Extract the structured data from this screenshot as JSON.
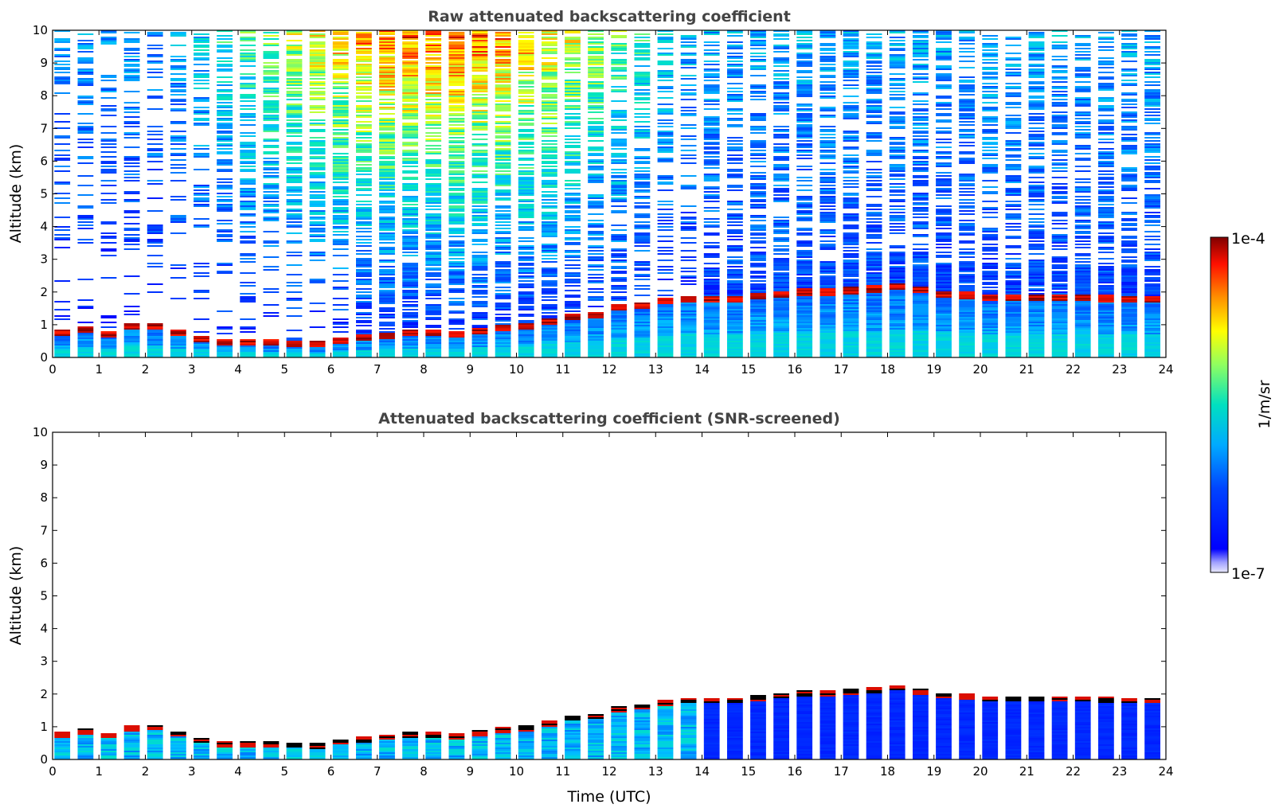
{
  "chart_data": [
    {
      "type": "heatmap",
      "title": "Raw attenuated backscattering coefficient",
      "ylabel": "Altitude (km)",
      "xlabel": "",
      "xlim": [
        0,
        24
      ],
      "ylim": [
        0,
        10
      ],
      "x_ticks": [
        "0",
        "1",
        "2",
        "3",
        "4",
        "5",
        "6",
        "7",
        "8",
        "9",
        "10",
        "11",
        "12",
        "13",
        "14",
        "15",
        "16",
        "17",
        "18",
        "19",
        "20",
        "21",
        "22",
        "23",
        "24"
      ],
      "y_ticks": [
        "0",
        "1",
        "2",
        "3",
        "4",
        "5",
        "6",
        "7",
        "8",
        "9",
        "10"
      ],
      "layer_height_km": [
        0.7,
        0.8,
        0.85,
        0.6,
        0.85,
        0.95,
        1.0,
        0.9,
        0.75,
        0.65,
        0.5,
        0.45,
        0.45,
        0.45,
        0.45,
        0.45,
        0.4,
        0.4,
        0.5,
        0.55,
        0.6,
        0.65,
        0.7,
        0.75,
        0.75,
        0.75,
        0.7,
        0.75,
        0.85,
        0.9,
        0.9,
        1.0,
        1.1,
        1.25,
        1.25,
        1.3,
        1.5,
        1.55,
        1.6,
        1.7,
        1.75,
        1.8,
        1.8,
        1.8,
        1.8,
        1.85,
        1.9,
        1.95,
        2.0,
        2.0,
        2.0,
        2.05,
        2.05,
        2.1,
        2.15,
        2.2,
        2.05,
        1.95,
        1.9,
        1.9,
        1.85,
        1.85,
        1.85,
        1.85,
        1.85,
        1.85,
        1.85,
        1.85,
        1.8,
        1.8,
        1.8,
        1.8,
        1.8
      ],
      "grid": false
    },
    {
      "type": "heatmap",
      "title": "Attenuated backscattering coefficient (SNR-screened)",
      "ylabel": "Altitude (km)",
      "xlabel": "Time (UTC)",
      "xlim": [
        0,
        24
      ],
      "ylim": [
        0,
        10
      ],
      "x_ticks": [
        "0",
        "1",
        "2",
        "3",
        "4",
        "5",
        "6",
        "7",
        "8",
        "9",
        "10",
        "11",
        "12",
        "13",
        "14",
        "15",
        "16",
        "17",
        "18",
        "19",
        "20",
        "21",
        "22",
        "23",
        "24"
      ],
      "y_ticks": [
        "0",
        "1",
        "2",
        "3",
        "4",
        "5",
        "6",
        "7",
        "8",
        "9",
        "10"
      ],
      "grid": false
    }
  ],
  "colorbar": {
    "max_label": "1e-4",
    "min_label": "1e-7",
    "unit_label": "1/m/sr",
    "scale": "log",
    "range": [
      1e-07,
      0.0001
    ]
  }
}
